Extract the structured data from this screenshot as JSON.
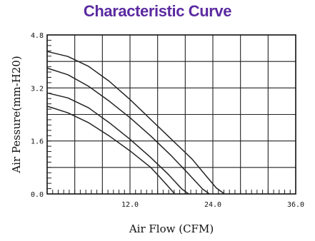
{
  "chart_data": {
    "type": "line",
    "title": "Characteristic Curve",
    "title_color": "#5b2aa0",
    "xlabel": "Air Flow (CFM)",
    "ylabel": "Air Pessure(mm-H20)",
    "xlim": [
      0,
      36
    ],
    "ylim": [
      0,
      4.8
    ],
    "x_ticks": [
      {
        "value": 12,
        "label": "12.0"
      },
      {
        "value": 24,
        "label": "24.0"
      },
      {
        "value": 36,
        "label": "36.0"
      }
    ],
    "y_ticks": [
      {
        "value": 0,
        "label": "0.0"
      },
      {
        "value": 1.6,
        "label": "1.6"
      },
      {
        "value": 3.2,
        "label": "3.2"
      },
      {
        "value": 4.8,
        "label": "4.8"
      }
    ],
    "grid": true,
    "line_color": "#222222",
    "series": [
      {
        "points": [
          [
            0,
            4.3
          ],
          [
            3,
            4.15
          ],
          [
            6,
            3.85
          ],
          [
            9,
            3.4
          ],
          [
            12,
            2.85
          ],
          [
            15,
            2.25
          ],
          [
            18,
            1.65
          ],
          [
            21,
            1.05
          ],
          [
            23,
            0.55
          ],
          [
            24.5,
            0.18
          ],
          [
            25.7,
            0
          ]
        ]
      },
      {
        "points": [
          [
            0,
            3.8
          ],
          [
            3,
            3.6
          ],
          [
            6,
            3.25
          ],
          [
            9,
            2.8
          ],
          [
            12,
            2.3
          ],
          [
            15,
            1.75
          ],
          [
            18,
            1.15
          ],
          [
            20.5,
            0.6
          ],
          [
            22.5,
            0.15
          ],
          [
            23.5,
            0
          ]
        ]
      },
      {
        "points": [
          [
            0,
            3.05
          ],
          [
            3,
            2.9
          ],
          [
            6,
            2.6
          ],
          [
            9,
            2.15
          ],
          [
            12,
            1.65
          ],
          [
            15,
            1.1
          ],
          [
            17.5,
            0.6
          ],
          [
            19.5,
            0.15
          ],
          [
            20.5,
            0
          ]
        ]
      },
      {
        "points": [
          [
            0,
            2.65
          ],
          [
            3,
            2.45
          ],
          [
            6,
            2.15
          ],
          [
            9,
            1.75
          ],
          [
            12,
            1.3
          ],
          [
            15,
            0.8
          ],
          [
            17,
            0.35
          ],
          [
            18.5,
            0
          ]
        ]
      }
    ]
  }
}
